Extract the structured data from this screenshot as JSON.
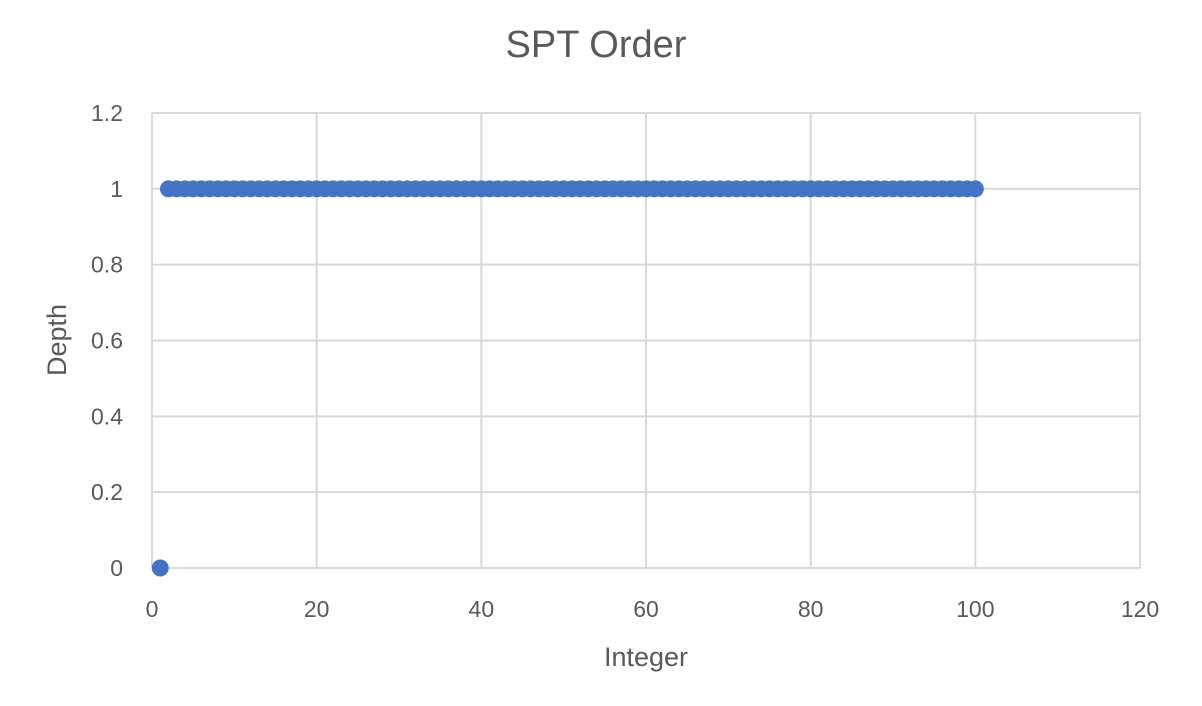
{
  "chart_data": {
    "type": "scatter",
    "title": "SPT Order",
    "xlabel": "Integer",
    "ylabel": "Depth",
    "xlim": [
      0,
      120
    ],
    "ylim": [
      0,
      1.2
    ],
    "x_ticks": [
      "0",
      "20",
      "40",
      "60",
      "80",
      "100",
      "120"
    ],
    "y_ticks": [
      "0",
      "0.2",
      "0.4",
      "0.6",
      "0.8",
      "1",
      "1.2"
    ],
    "grid": true,
    "legend": "none",
    "marker_color": "#4472C4",
    "series": [
      {
        "x": [
          1,
          2,
          3,
          4,
          5,
          6,
          7,
          8,
          9,
          10,
          11,
          12,
          13,
          14,
          15,
          16,
          17,
          18,
          19,
          20,
          21,
          22,
          23,
          24,
          25,
          26,
          27,
          28,
          29,
          30,
          31,
          32,
          33,
          34,
          35,
          36,
          37,
          38,
          39,
          40,
          41,
          42,
          43,
          44,
          45,
          46,
          47,
          48,
          49,
          50,
          51,
          52,
          53,
          54,
          55,
          56,
          57,
          58,
          59,
          60,
          61,
          62,
          63,
          64,
          65,
          66,
          67,
          68,
          69,
          70,
          71,
          72,
          73,
          74,
          75,
          76,
          77,
          78,
          79,
          80,
          81,
          82,
          83,
          84,
          85,
          86,
          87,
          88,
          89,
          90,
          91,
          92,
          93,
          94,
          95,
          96,
          97,
          98,
          99,
          100
        ],
        "y": [
          0,
          1,
          1,
          1,
          1,
          1,
          1,
          1,
          1,
          1,
          1,
          1,
          1,
          1,
          1,
          1,
          1,
          1,
          1,
          1,
          1,
          1,
          1,
          1,
          1,
          1,
          1,
          1,
          1,
          1,
          1,
          1,
          1,
          1,
          1,
          1,
          1,
          1,
          1,
          1,
          1,
          1,
          1,
          1,
          1,
          1,
          1,
          1,
          1,
          1,
          1,
          1,
          1,
          1,
          1,
          1,
          1,
          1,
          1,
          1,
          1,
          1,
          1,
          1,
          1,
          1,
          1,
          1,
          1,
          1,
          1,
          1,
          1,
          1,
          1,
          1,
          1,
          1,
          1,
          1,
          1,
          1,
          1,
          1,
          1,
          1,
          1,
          1,
          1,
          1,
          1,
          1,
          1,
          1,
          1,
          1,
          1,
          1,
          1,
          1
        ]
      }
    ]
  }
}
